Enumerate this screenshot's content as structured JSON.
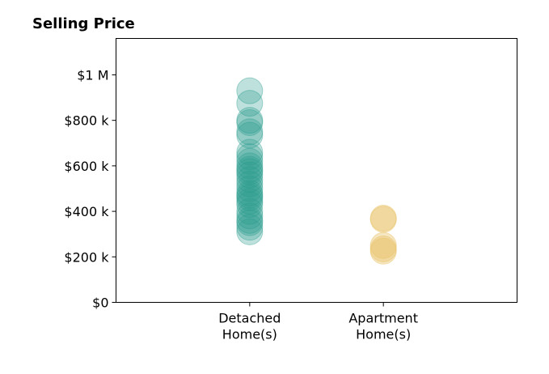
{
  "chart_data": {
    "type": "scatter",
    "title": "Selling Price",
    "xlabel": "",
    "ylabel": "",
    "categories": [
      {
        "lines": [
          "Detached",
          "Home(s)"
        ]
      },
      {
        "lines": [
          "Apartment",
          "Home(s)"
        ]
      }
    ],
    "xlim": [
      -1,
      2
    ],
    "ylim": [
      0,
      1160000
    ],
    "yticks": [
      {
        "value": 0,
        "label": "$0"
      },
      {
        "value": 200000,
        "label": "$200 k"
      },
      {
        "value": 400000,
        "label": "$400 k"
      },
      {
        "value": 600000,
        "label": "$600 k"
      },
      {
        "value": 800000,
        "label": "$800 k"
      },
      {
        "value": 1000000,
        "label": "$1 M"
      }
    ],
    "grid": false,
    "legend": "none",
    "series": [
      {
        "category_index": 0,
        "color": "#2a9d8f",
        "opacity": 0.3,
        "values": [
          930000,
          875000,
          800000,
          790000,
          750000,
          735000,
          660000,
          640000,
          620000,
          600000,
          585000,
          575000,
          560000,
          540000,
          520000,
          500000,
          480000,
          470000,
          460000,
          445000,
          430000,
          400000,
          380000,
          360000,
          350000,
          330000,
          310000
        ]
      },
      {
        "category_index": 1,
        "color": "#e9c46a",
        "opacity": 0.4,
        "values": [
          370000,
          365000,
          250000,
          235000,
          225000
        ]
      }
    ]
  }
}
